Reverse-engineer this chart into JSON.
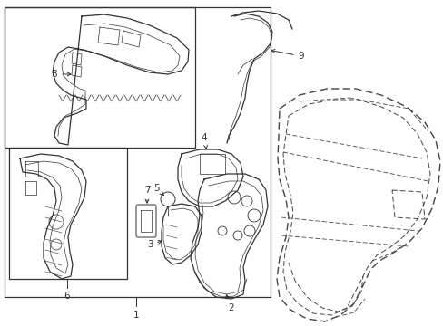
{
  "bg_color": "#ffffff",
  "line_color": "#333333",
  "figsize": [
    4.89,
    3.6
  ],
  "dpi": 100,
  "lw_main": 0.9,
  "lw_thin": 0.5,
  "fontsize": 7.5
}
